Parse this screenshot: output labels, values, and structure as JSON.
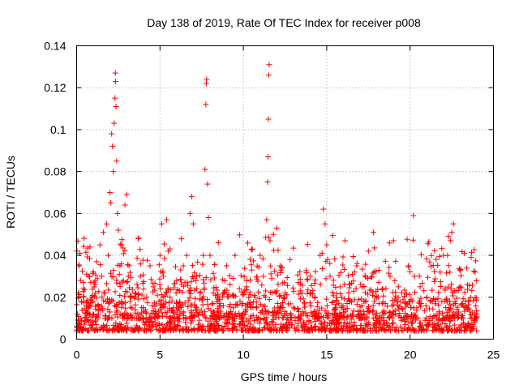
{
  "chart_data": {
    "type": "scatter",
    "title": "Day 138 of 2019, Rate Of TEC Index for receiver p008",
    "xlabel": "GPS time / hours",
    "ylabel": "ROTI / TECUs",
    "xlim": [
      0,
      25
    ],
    "ylim": [
      0,
      0.14
    ],
    "xticks": [
      0,
      5,
      10,
      15,
      20,
      25
    ],
    "xtick_labels": [
      "0",
      "5",
      "10",
      "15",
      "20",
      "25"
    ],
    "yticks": [
      0,
      0.02,
      0.04,
      0.06,
      0.08,
      0.1,
      0.12,
      0.14
    ],
    "ytick_labels": [
      "0",
      "0.02",
      "0.04",
      "0.06",
      "0.08",
      "0.1",
      "0.12",
      "0.14"
    ],
    "grid": true,
    "marker": "+",
    "color": "#ff0000",
    "series": [
      {
        "name": "ROTI",
        "points": [
          [
            0.0,
            0.004
          ],
          [
            0.05,
            0.012
          ],
          [
            0.1,
            0.022
          ],
          [
            0.15,
            0.035
          ],
          [
            0.2,
            0.041
          ],
          [
            0.3,
            0.018
          ],
          [
            0.4,
            0.027
          ],
          [
            0.5,
            0.009
          ],
          [
            0.6,
            0.031
          ],
          [
            0.7,
            0.015
          ],
          [
            0.8,
            0.044
          ],
          [
            0.9,
            0.02
          ],
          [
            1.0,
            0.008
          ],
          [
            1.1,
            0.026
          ],
          [
            1.2,
            0.037
          ],
          [
            1.3,
            0.012
          ],
          [
            1.4,
            0.045
          ],
          [
            1.5,
            0.03
          ],
          [
            1.6,
            0.051
          ],
          [
            1.7,
            0.022
          ],
          [
            1.8,
            0.055
          ],
          [
            1.9,
            0.04
          ],
          [
            2.0,
            0.07
          ],
          [
            2.05,
            0.065
          ],
          [
            2.1,
            0.098
          ],
          [
            2.15,
            0.092
          ],
          [
            2.2,
            0.08
          ],
          [
            2.25,
            0.103
          ],
          [
            2.3,
            0.115
          ],
          [
            2.32,
            0.127
          ],
          [
            2.34,
            0.123
          ],
          [
            2.36,
            0.111
          ],
          [
            2.4,
            0.085
          ],
          [
            2.45,
            0.06
          ],
          [
            2.5,
            0.052
          ],
          [
            2.6,
            0.035
          ],
          [
            2.7,
            0.045
          ],
          [
            2.8,
            0.028
          ],
          [
            2.9,
            0.064
          ],
          [
            3.0,
            0.069
          ],
          [
            3.1,
            0.03
          ],
          [
            3.2,
            0.018
          ],
          [
            3.3,
            0.01
          ],
          [
            3.5,
            0.022
          ],
          [
            3.7,
            0.048
          ],
          [
            3.9,
            0.015
          ],
          [
            4.0,
            0.01
          ],
          [
            4.2,
            0.02
          ],
          [
            4.4,
            0.035
          ],
          [
            4.6,
            0.025
          ],
          [
            4.8,
            0.012
          ],
          [
            5.0,
            0.04
          ],
          [
            5.1,
            0.055
          ],
          [
            5.2,
            0.03
          ],
          [
            5.4,
            0.057
          ],
          [
            5.5,
            0.042
          ],
          [
            5.6,
            0.02
          ],
          [
            5.8,
            0.015
          ],
          [
            6.0,
            0.028
          ],
          [
            6.2,
            0.012
          ],
          [
            6.4,
            0.035
          ],
          [
            6.6,
            0.04
          ],
          [
            6.8,
            0.06
          ],
          [
            6.9,
            0.068
          ],
          [
            7.0,
            0.055
          ],
          [
            7.2,
            0.03
          ],
          [
            7.4,
            0.022
          ],
          [
            7.6,
            0.04
          ],
          [
            7.7,
            0.081
          ],
          [
            7.75,
            0.112
          ],
          [
            7.78,
            0.122
          ],
          [
            7.8,
            0.124
          ],
          [
            7.85,
            0.074
          ],
          [
            7.9,
            0.058
          ],
          [
            8.0,
            0.04
          ],
          [
            8.2,
            0.022
          ],
          [
            8.5,
            0.046
          ],
          [
            8.8,
            0.016
          ],
          [
            9.0,
            0.035
          ],
          [
            9.2,
            0.012
          ],
          [
            9.5,
            0.04
          ],
          [
            9.8,
            0.018
          ],
          [
            10.0,
            0.01
          ],
          [
            10.2,
            0.025
          ],
          [
            10.5,
            0.033
          ],
          [
            10.8,
            0.015
          ],
          [
            11.0,
            0.04
          ],
          [
            11.2,
            0.03
          ],
          [
            11.4,
            0.057
          ],
          [
            11.45,
            0.075
          ],
          [
            11.48,
            0.087
          ],
          [
            11.5,
            0.105
          ],
          [
            11.52,
            0.126
          ],
          [
            11.55,
            0.131
          ],
          [
            11.6,
            0.047
          ],
          [
            11.8,
            0.05
          ],
          [
            12.0,
            0.053
          ],
          [
            12.2,
            0.035
          ],
          [
            12.5,
            0.022
          ],
          [
            12.8,
            0.038
          ],
          [
            13.0,
            0.015
          ],
          [
            13.3,
            0.027
          ],
          [
            13.6,
            0.012
          ],
          [
            14.0,
            0.03
          ],
          [
            14.3,
            0.02
          ],
          [
            14.6,
            0.04
          ],
          [
            14.8,
            0.062
          ],
          [
            14.9,
            0.055
          ],
          [
            15.0,
            0.045
          ],
          [
            15.2,
            0.03
          ],
          [
            15.5,
            0.012
          ],
          [
            15.8,
            0.025
          ],
          [
            16.1,
            0.047
          ],
          [
            16.4,
            0.018
          ],
          [
            16.8,
            0.035
          ],
          [
            17.1,
            0.01
          ],
          [
            17.5,
            0.042
          ],
          [
            17.8,
            0.051
          ],
          [
            18.0,
            0.02
          ],
          [
            18.4,
            0.012
          ],
          [
            18.8,
            0.03
          ],
          [
            19.0,
            0.047
          ],
          [
            19.3,
            0.025
          ],
          [
            19.6,
            0.01
          ],
          [
            19.9,
            0.035
          ],
          [
            20.2,
            0.059
          ],
          [
            20.4,
            0.015
          ],
          [
            20.6,
            0.025
          ],
          [
            20.9,
            0.009
          ],
          [
            21.2,
            0.018
          ],
          [
            21.5,
            0.006
          ],
          [
            21.8,
            0.032
          ],
          [
            22.0,
            0.04
          ],
          [
            22.3,
            0.015
          ],
          [
            22.5,
            0.051
          ],
          [
            22.6,
            0.055
          ],
          [
            22.8,
            0.012
          ],
          [
            23.0,
            0.025
          ],
          [
            23.2,
            0.008
          ],
          [
            23.5,
            0.018
          ],
          [
            23.7,
            0.01
          ],
          [
            23.9,
            0.032
          ],
          [
            24.0,
            0.012
          ]
        ]
      }
    ],
    "dense_band": {
      "ymin": 0.004,
      "ymax_base": 0.015,
      "points": 1400
    }
  }
}
